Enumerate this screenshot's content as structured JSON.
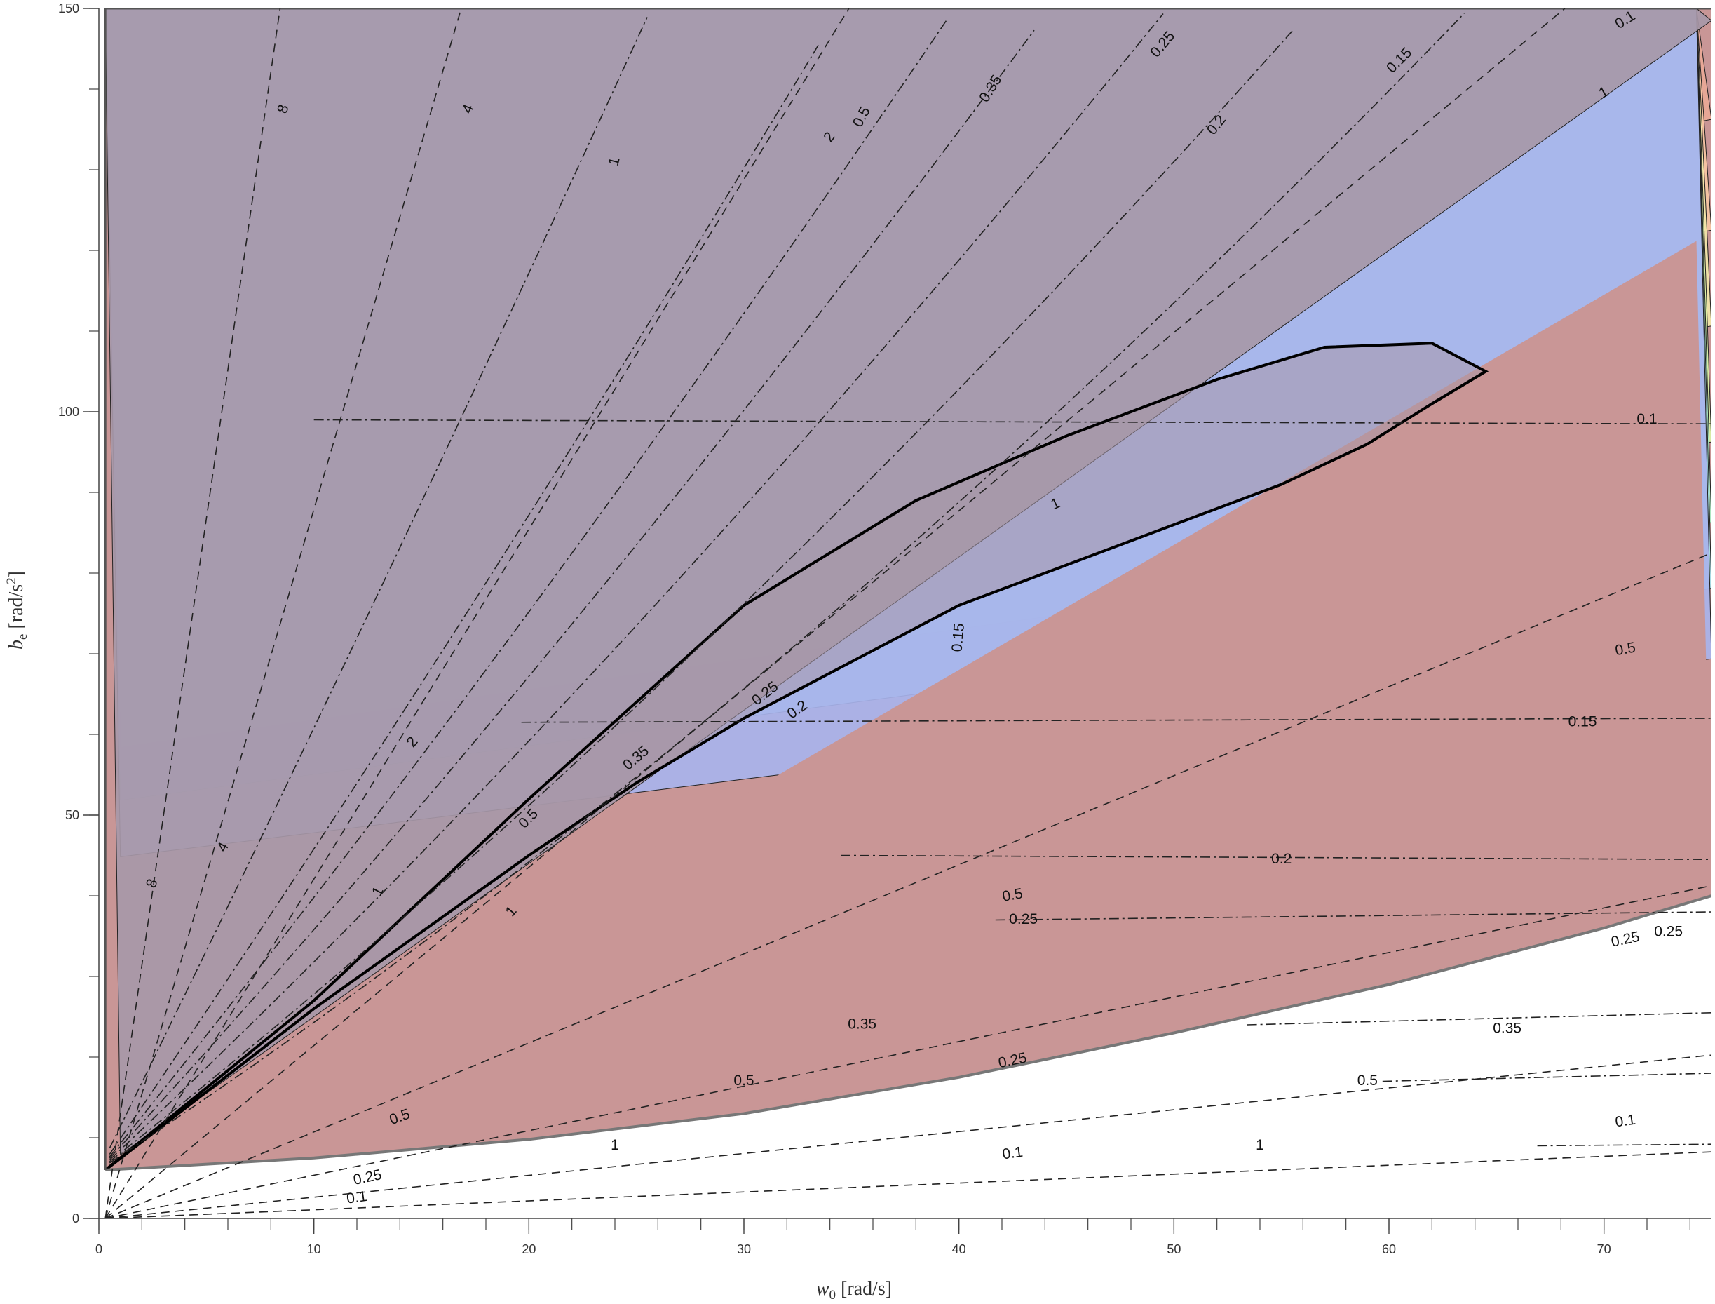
{
  "chart_data": {
    "type": "contour",
    "xlabel_main": "w",
    "xlabel_sub": "0",
    "xlabel_unit": " [rad/s]",
    "ylabel_main": "b",
    "ylabel_sub": "e",
    "ylabel_unit": " [rad/s",
    "ylabel_exp": "2",
    "ylabel_close": "]",
    "xlim": [
      0,
      75
    ],
    "ylim": [
      0,
      150
    ],
    "x_ticks": [
      0,
      10,
      20,
      30,
      40,
      50,
      60,
      70
    ],
    "y_ticks": [
      0,
      50,
      100,
      150
    ],
    "feasible_region_boundary": [
      [
        0.3,
        6
      ],
      [
        10,
        7.5
      ],
      [
        20,
        9.8
      ],
      [
        30,
        13
      ],
      [
        40,
        17.5
      ],
      [
        50,
        23
      ],
      [
        60,
        29
      ],
      [
        70,
        36
      ],
      [
        75,
        40
      ],
      [
        75,
        150
      ],
      [
        0.3,
        150
      ]
    ],
    "stability_boundary": [
      [
        0.3,
        6
      ],
      [
        10,
        26
      ],
      [
        20,
        45
      ],
      [
        25,
        54
      ],
      [
        30,
        62
      ],
      [
        35,
        69
      ],
      [
        40,
        76
      ],
      [
        45,
        81
      ],
      [
        50,
        86
      ],
      [
        55,
        91
      ],
      [
        59,
        96
      ],
      [
        62,
        101
      ],
      [
        64.5,
        105
      ],
      [
        62,
        108.5
      ],
      [
        57,
        108
      ],
      [
        52,
        104
      ],
      [
        45,
        97
      ],
      [
        38,
        89
      ],
      [
        30,
        76
      ],
      [
        20,
        52
      ],
      [
        10,
        27
      ],
      [
        0.3,
        6
      ]
    ],
    "filled_band_levels": [
      {
        "lower_b_at_w0": 110.5,
        "color": "#c99696"
      },
      {
        "lower_b_at_w0": 98,
        "color": "#e9a896"
      },
      {
        "lower_b_at_w0": 87,
        "color": "#f7c6a3"
      },
      {
        "lower_b_at_w0": 77.5,
        "color": "#f2e6a8"
      },
      {
        "lower_b_at_w0": 66,
        "color": "#d9f2a5"
      },
      {
        "lower_b_at_w0": 58,
        "color": "#a9ecc3"
      },
      {
        "lower_b_at_w0": 51.5,
        "color": "#a5dfe9"
      },
      {
        "lower_b_at_w0": 44.5,
        "color": "#a8b3ec"
      },
      {
        "lower_b_at_w0": 6,
        "color": "#a798a8"
      }
    ],
    "dashed_contour_labels": [
      "8",
      "4",
      "2",
      "1",
      "0.5",
      "0.25",
      "0.1"
    ],
    "dashdot_contour_labels": [
      "1",
      "0.5",
      "0.35",
      "0.25",
      "0.2",
      "0.15",
      "0.1"
    ],
    "contour_labels": [
      {
        "text": "8",
        "x": 8.6,
        "y": 137.5,
        "rot": -72
      },
      {
        "text": "4",
        "x": 17.2,
        "y": 137.5,
        "rot": -66
      },
      {
        "text": "2",
        "x": 34,
        "y": 134,
        "rot": -55
      },
      {
        "text": "1",
        "x": 24,
        "y": 131,
        "rot": -76
      },
      {
        "text": "0.5",
        "x": 35.5,
        "y": 136.5,
        "rot": -62
      },
      {
        "text": "0.35",
        "x": 41.5,
        "y": 140,
        "rot": -58
      },
      {
        "text": "0.25",
        "x": 49.5,
        "y": 145.5,
        "rot": -50
      },
      {
        "text": "0.2",
        "x": 52,
        "y": 135.5,
        "rot": -52
      },
      {
        "text": "0.15",
        "x": 60.5,
        "y": 143.5,
        "rot": -45
      },
      {
        "text": "0.1",
        "x": 71,
        "y": 148.5,
        "rot": -32
      },
      {
        "text": "1",
        "x": 70,
        "y": 139.5,
        "rot": -30
      },
      {
        "text": "0.1",
        "x": 72,
        "y": 99,
        "rot": 0
      },
      {
        "text": "0.5",
        "x": 71,
        "y": 70.5,
        "rot": -10
      },
      {
        "text": "0.15",
        "x": 69,
        "y": 61.5,
        "rot": 0
      },
      {
        "text": "0.2",
        "x": 55,
        "y": 44.5,
        "rot": 0
      },
      {
        "text": "0.5",
        "x": 42.5,
        "y": 40,
        "rot": -10
      },
      {
        "text": "0.25",
        "x": 43,
        "y": 37,
        "rot": 0
      },
      {
        "text": "0.25",
        "x": 71,
        "y": 34.5,
        "rot": -12
      },
      {
        "text": "0.25",
        "x": 73,
        "y": 35.5,
        "rot": 0
      },
      {
        "text": "0.35",
        "x": 35.5,
        "y": 24,
        "rot": 0
      },
      {
        "text": "0.35",
        "x": 65.5,
        "y": 23.5,
        "rot": 0
      },
      {
        "text": "0.25",
        "x": 42.5,
        "y": 19.5,
        "rot": -12
      },
      {
        "text": "0.5",
        "x": 30,
        "y": 17,
        "rot": 0
      },
      {
        "text": "0.5",
        "x": 59,
        "y": 17,
        "rot": 0
      },
      {
        "text": "0.5",
        "x": 14,
        "y": 12.5,
        "rot": -20
      },
      {
        "text": "0.1",
        "x": 71,
        "y": 12,
        "rot": -8
      },
      {
        "text": "1",
        "x": 24,
        "y": 9,
        "rot": 0
      },
      {
        "text": "1",
        "x": 54,
        "y": 9,
        "rot": 0
      },
      {
        "text": "0.1",
        "x": 42.5,
        "y": 8,
        "rot": -8
      },
      {
        "text": "0.25",
        "x": 12.5,
        "y": 5,
        "rot": -12
      },
      {
        "text": "0.1",
        "x": 12,
        "y": 2.5,
        "rot": -8
      },
      {
        "text": "2",
        "x": 14.6,
        "y": 59,
        "rot": -50
      },
      {
        "text": "4",
        "x": 5.8,
        "y": 46,
        "rot": -62
      },
      {
        "text": "8",
        "x": 2.5,
        "y": 41.5,
        "rot": -70
      },
      {
        "text": "1",
        "x": 13,
        "y": 40.5,
        "rot": -62
      },
      {
        "text": "0.5",
        "x": 20,
        "y": 49.5,
        "rot": -45
      },
      {
        "text": "0.35",
        "x": 25,
        "y": 57,
        "rot": -40
      },
      {
        "text": "0.25",
        "x": 31,
        "y": 65,
        "rot": -38
      },
      {
        "text": "0.2",
        "x": 32.5,
        "y": 63,
        "rot": -35
      },
      {
        "text": "0.15",
        "x": 40,
        "y": 72,
        "rot": -85
      },
      {
        "text": "1",
        "x": 44.5,
        "y": 88.5,
        "rot": -25
      },
      {
        "text": "1",
        "x": 19.2,
        "y": 38,
        "rot": -50
      }
    ]
  }
}
